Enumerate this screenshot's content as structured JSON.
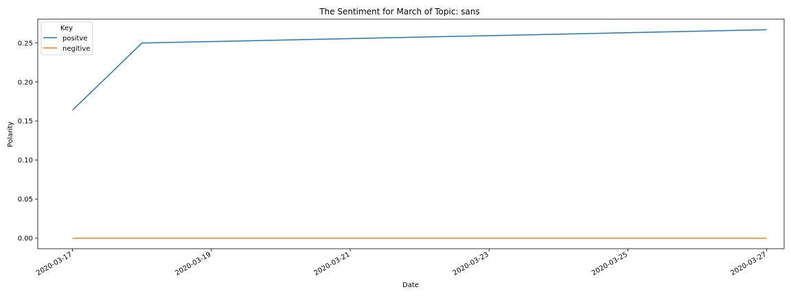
{
  "chart_data": {
    "type": "line",
    "title": "The Sentiment for March of Topic: sans",
    "xlabel": "Date",
    "ylabel": "Polarity",
    "x": [
      "2020-03-17",
      "2020-03-18",
      "2020-03-27"
    ],
    "xlim": [
      "2020-03-16.5",
      "2020-03-27.25"
    ],
    "ylim": [
      -0.0134,
      0.2805
    ],
    "x_ticks": [
      "2020-03-17",
      "2020-03-19",
      "2020-03-21",
      "2020-03-23",
      "2020-03-25",
      "2020-03-27"
    ],
    "y_ticks": [
      "0.00",
      "0.05",
      "0.10",
      "0.15",
      "0.20",
      "0.25"
    ],
    "y_tick_values": [
      0,
      0.05,
      0.1,
      0.15,
      0.2,
      0.25
    ],
    "grid": false,
    "series": [
      {
        "name": "positve",
        "color": "#1f77b4",
        "values": [
          0.164,
          0.25,
          0.267
        ]
      },
      {
        "name": "negitive",
        "color": "#ff7f0e",
        "values": [
          0.0,
          0.0,
          0.0
        ]
      }
    ],
    "legend": {
      "title": "Key",
      "position": "top-left"
    }
  }
}
